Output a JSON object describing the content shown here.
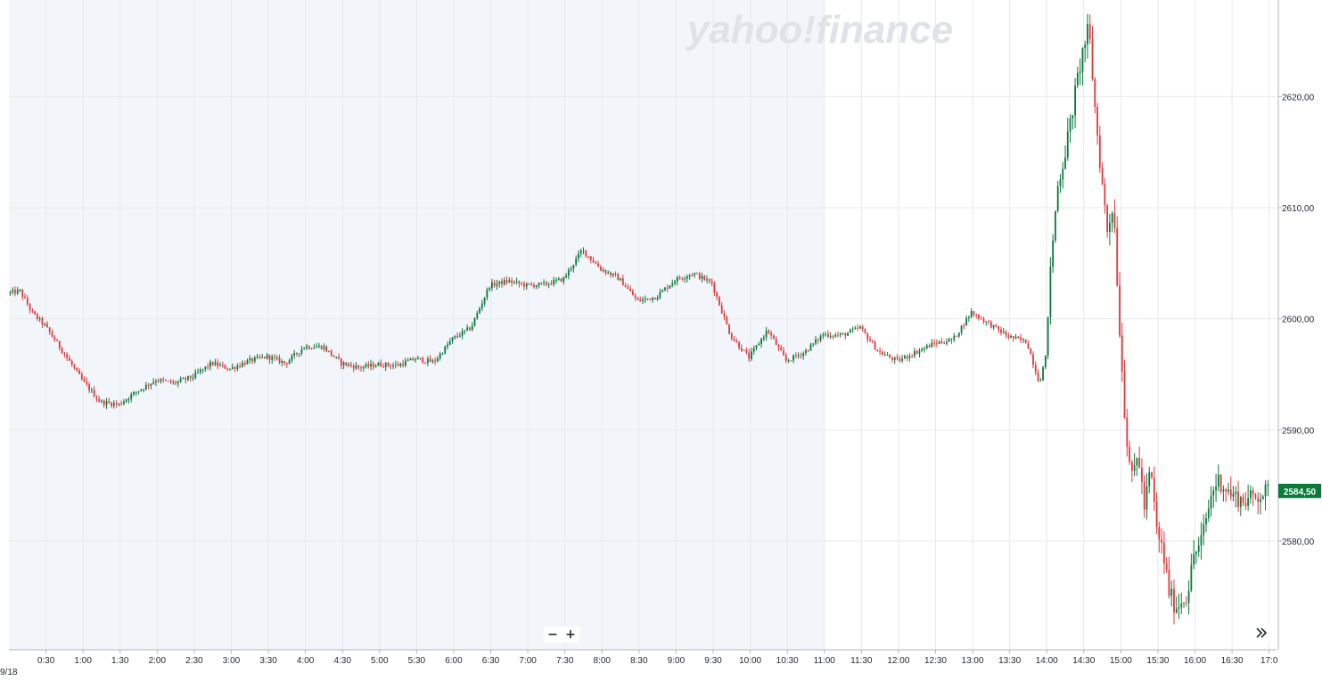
{
  "watermark": "yahoo!finance",
  "zoom": {
    "minus_label": "−",
    "plus_label": "+"
  },
  "colors": {
    "up": "#0a7a3b",
    "down": "#e0393e",
    "premarket_bg": "#f2f6fa",
    "grid": "#e6e9eb",
    "price_tag": "#0a7a3b"
  },
  "icons": {
    "scroll": "double-chevron-right-icon"
  },
  "chart_data": {
    "type": "candlestick",
    "title": "",
    "date_label": "9/18",
    "x_ticks": [
      "0:30",
      "1:00",
      "1:30",
      "2:00",
      "2:30",
      "3:00",
      "3:30",
      "4:00",
      "4:30",
      "5:00",
      "5:30",
      "6:00",
      "6:30",
      "7:00",
      "7:30",
      "8:00",
      "8:30",
      "9:00",
      "9:30",
      "10:00",
      "10:30",
      "11:00",
      "11:30",
      "12:00",
      "12:30",
      "13:00",
      "13:30",
      "14:00",
      "14:30",
      "15:00",
      "15:30",
      "16:00",
      "16:30",
      "17:0"
    ],
    "y_ticks": [
      "2620,00",
      "2610,00",
      "2600,00",
      "2590,00",
      "2580,00"
    ],
    "y_tick_values": [
      2620,
      2610,
      2600,
      2590,
      2580
    ],
    "ylim": [
      2570.2,
      2628.7
    ],
    "x_range_hours": [
      0,
      17.1
    ],
    "premarket_shaded_until": "11:00",
    "last_price": "2584,50",
    "last_price_value": 2584.5,
    "grid": true,
    "price_path": [
      [
        "0:00",
        2602.3
      ],
      [
        "0:10",
        2602.5
      ],
      [
        "0:20",
        2600.5
      ],
      [
        "0:30",
        2599.4
      ],
      [
        "0:45",
        2597.0
      ],
      [
        "1:00",
        2594.5
      ],
      [
        "1:15",
        2592.5
      ],
      [
        "1:30",
        2592.3
      ],
      [
        "1:45",
        2593.5
      ],
      [
        "2:00",
        2594.5
      ],
      [
        "2:15",
        2594.2
      ],
      [
        "2:30",
        2594.8
      ],
      [
        "2:45",
        2596.0
      ],
      [
        "3:00",
        2595.5
      ],
      [
        "3:15",
        2596.2
      ],
      [
        "3:30",
        2596.6
      ],
      [
        "3:45",
        2596.0
      ],
      [
        "4:00",
        2597.5
      ],
      [
        "4:15",
        2597.5
      ],
      [
        "4:30",
        2596.0
      ],
      [
        "4:45",
        2595.6
      ],
      [
        "5:00",
        2595.9
      ],
      [
        "5:15",
        2595.8
      ],
      [
        "5:30",
        2596.4
      ],
      [
        "5:45",
        2596.1
      ],
      [
        "6:00",
        2598.2
      ],
      [
        "6:15",
        2599.2
      ],
      [
        "6:30",
        2603.0
      ],
      [
        "6:45",
        2603.4
      ],
      [
        "7:00",
        2603.0
      ],
      [
        "7:15",
        2603.1
      ],
      [
        "7:30",
        2603.6
      ],
      [
        "7:45",
        2606.2
      ],
      [
        "8:00",
        2604.5
      ],
      [
        "8:15",
        2603.6
      ],
      [
        "8:30",
        2601.6
      ],
      [
        "8:45",
        2602.0
      ],
      [
        "9:00",
        2603.5
      ],
      [
        "9:15",
        2604.1
      ],
      [
        "9:30",
        2603.2
      ],
      [
        "9:45",
        2598.5
      ],
      [
        "10:00",
        2596.5
      ],
      [
        "10:15",
        2599.0
      ],
      [
        "10:30",
        2596.2
      ],
      [
        "10:45",
        2597.0
      ],
      [
        "11:00",
        2598.6
      ],
      [
        "11:15",
        2598.5
      ],
      [
        "11:30",
        2599.2
      ],
      [
        "11:45",
        2597.0
      ],
      [
        "12:00",
        2596.2
      ],
      [
        "12:15",
        2597.0
      ],
      [
        "12:30",
        2597.8
      ],
      [
        "12:45",
        2598.1
      ],
      [
        "13:00",
        2600.6
      ],
      [
        "13:15",
        2599.5
      ],
      [
        "13:30",
        2598.4
      ],
      [
        "13:45",
        2597.9
      ],
      [
        "13:55",
        2594.2
      ],
      [
        "14:00",
        2596.5
      ],
      [
        "14:05",
        2606.0
      ],
      [
        "14:10",
        2612.0
      ],
      [
        "14:15",
        2614.5
      ],
      [
        "14:20",
        2617.5
      ],
      [
        "14:25",
        2621.0
      ],
      [
        "14:30",
        2624.0
      ],
      [
        "14:35",
        2626.2
      ],
      [
        "14:40",
        2619.0
      ],
      [
        "14:45",
        2613.0
      ],
      [
        "14:50",
        2608.0
      ],
      [
        "14:55",
        2610.5
      ],
      [
        "15:00",
        2599.0
      ],
      [
        "15:05",
        2590.0
      ],
      [
        "15:10",
        2585.5
      ],
      [
        "15:15",
        2588.0
      ],
      [
        "15:20",
        2583.0
      ],
      [
        "15:25",
        2586.5
      ],
      [
        "15:30",
        2581.0
      ],
      [
        "15:35",
        2579.0
      ],
      [
        "15:40",
        2575.5
      ],
      [
        "15:45",
        2574.0
      ],
      [
        "15:55",
        2575.2
      ],
      [
        "16:00",
        2578.8
      ],
      [
        "16:05",
        2579.5
      ],
      [
        "16:10",
        2582.0
      ],
      [
        "16:15",
        2584.5
      ],
      [
        "16:20",
        2585.5
      ],
      [
        "16:30",
        2584.2
      ],
      [
        "16:40",
        2583.6
      ],
      [
        "16:50",
        2584.0
      ],
      [
        "17:00",
        2584.5
      ]
    ]
  }
}
